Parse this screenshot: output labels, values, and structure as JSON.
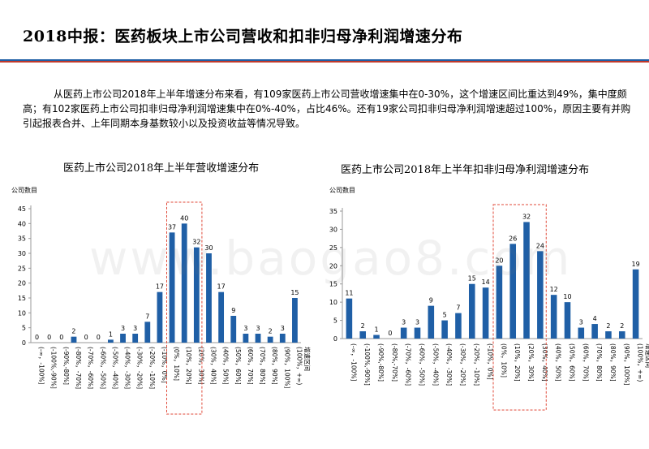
{
  "header": {
    "title": "2018中报：医药板块上市公司营收和扣非归母净利润增速分布",
    "accent_blue": "#1f5fa6",
    "accent_red": "#c0392b"
  },
  "summary": "从医药上市公司2018年上半年增速分布来看，有109家医药上市公司营收增速集中在0-30%，这个增速区间比重达到49%，集中度颇高；有102家医药上市公司扣非归母净利润增速集中在0%-40%，占比46%。还有19家公司扣非归母净利润增速超过100%，原因主要有并购引起报表合并、上年同期本身基数较小以及投资收益等情况导致。",
  "watermark": "www.baogao8.com",
  "bar_color": "#1f5fa6",
  "highlight_color": "#e04a3a",
  "chart_data": [
    {
      "type": "bar",
      "title": "医药上市公司2018年上半年营收增速分布",
      "ylabel": "公司数目",
      "xlabel": "增速区间",
      "ylim": [
        0,
        45
      ],
      "yticks": [
        0,
        5,
        10,
        15,
        20,
        25,
        30,
        35,
        40,
        45
      ],
      "categories": [
        "(-∞，-100%]",
        "(-100%,-90%]",
        "(-90%,-80%]",
        "(-80%，-70%]",
        "(-70%，-60%]",
        "(-60%，-50%]",
        "(-50%，-40%]",
        "(-40%，-30%]",
        "(-30%，-20%]",
        "(-20%，-10%]",
        "(-10%，0%]",
        "(0%，10%]",
        "(10%，20%]",
        "(20%，30%]",
        "(30%，40%]",
        "(40%，50%]",
        "(50%，60%]",
        "(60%，70%]",
        "(70%，80%]",
        "(80%，90%]",
        "(90%，100%]",
        "(100%，+∞)"
      ],
      "values": [
        0,
        0,
        0,
        2,
        0,
        0,
        1,
        3,
        3,
        7,
        17,
        37,
        40,
        32,
        30,
        17,
        9,
        3,
        3,
        2,
        3,
        15
      ],
      "highlight": [
        11,
        13
      ],
      "grid": false
    },
    {
      "type": "bar",
      "title": "医药上市公司2018年上半年扣非归母净利润增速分布",
      "ylabel": "公司数目",
      "xlabel": "增速区间",
      "ylim": [
        0,
        35
      ],
      "yticks": [
        0,
        5,
        10,
        15,
        20,
        25,
        30,
        35
      ],
      "categories": [
        "(-∞，-100%]",
        "(-100%,-90%]",
        "(-90%,-80%]",
        "(-80%,-70%]",
        "(-70%，-60%]",
        "(-60%，-50%]",
        "(-50%，-40%]",
        "(-40%，-30%]",
        "(-30%，-20%]",
        "(-20%，-10%]",
        "(-10%，0%]",
        "(0%，10%]",
        "(10%，20%]",
        "(20%，30%]",
        "(30%，40%]",
        "(40%，50%]",
        "(50%，60%]",
        "(60%，70%]",
        "(70%，80%]",
        "(80%，90%]",
        "(90%，100%]",
        "(100%，+∞)"
      ],
      "values": [
        11,
        2,
        1,
        0,
        3,
        3,
        9,
        5,
        7,
        15,
        14,
        20,
        26,
        32,
        24,
        12,
        10,
        3,
        4,
        2,
        2,
        19
      ],
      "highlight": [
        11,
        14
      ],
      "grid": false
    }
  ]
}
